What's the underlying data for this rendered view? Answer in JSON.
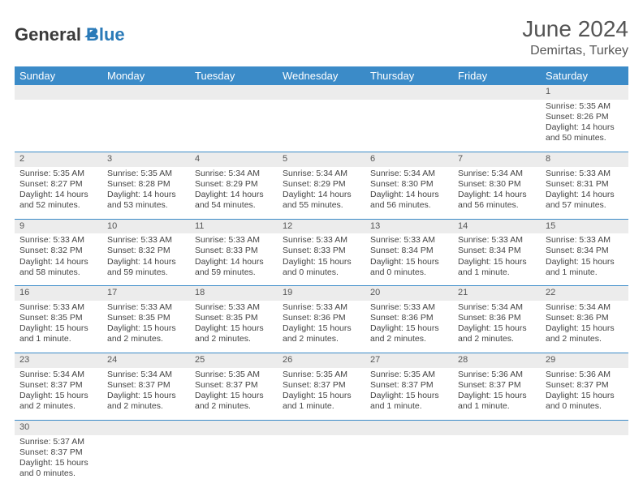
{
  "logo": {
    "text1": "General",
    "text2": "Blue"
  },
  "header": {
    "month": "June 2024",
    "location": "Demirtas, Turkey"
  },
  "weekdays": [
    "Sunday",
    "Monday",
    "Tuesday",
    "Wednesday",
    "Thursday",
    "Friday",
    "Saturday"
  ],
  "colors": {
    "headerBg": "#3b8bc8",
    "rowBg": "#ececec"
  },
  "weeks": [
    [
      null,
      null,
      null,
      null,
      null,
      null,
      {
        "n": "1",
        "sr": "5:35 AM",
        "ss": "8:26 PM",
        "dl": "14 hours and 50 minutes."
      }
    ],
    [
      {
        "n": "2",
        "sr": "5:35 AM",
        "ss": "8:27 PM",
        "dl": "14 hours and 52 minutes."
      },
      {
        "n": "3",
        "sr": "5:35 AM",
        "ss": "8:28 PM",
        "dl": "14 hours and 53 minutes."
      },
      {
        "n": "4",
        "sr": "5:34 AM",
        "ss": "8:29 PM",
        "dl": "14 hours and 54 minutes."
      },
      {
        "n": "5",
        "sr": "5:34 AM",
        "ss": "8:29 PM",
        "dl": "14 hours and 55 minutes."
      },
      {
        "n": "6",
        "sr": "5:34 AM",
        "ss": "8:30 PM",
        "dl": "14 hours and 56 minutes."
      },
      {
        "n": "7",
        "sr": "5:34 AM",
        "ss": "8:30 PM",
        "dl": "14 hours and 56 minutes."
      },
      {
        "n": "8",
        "sr": "5:33 AM",
        "ss": "8:31 PM",
        "dl": "14 hours and 57 minutes."
      }
    ],
    [
      {
        "n": "9",
        "sr": "5:33 AM",
        "ss": "8:32 PM",
        "dl": "14 hours and 58 minutes."
      },
      {
        "n": "10",
        "sr": "5:33 AM",
        "ss": "8:32 PM",
        "dl": "14 hours and 59 minutes."
      },
      {
        "n": "11",
        "sr": "5:33 AM",
        "ss": "8:33 PM",
        "dl": "14 hours and 59 minutes."
      },
      {
        "n": "12",
        "sr": "5:33 AM",
        "ss": "8:33 PM",
        "dl": "15 hours and 0 minutes."
      },
      {
        "n": "13",
        "sr": "5:33 AM",
        "ss": "8:34 PM",
        "dl": "15 hours and 0 minutes."
      },
      {
        "n": "14",
        "sr": "5:33 AM",
        "ss": "8:34 PM",
        "dl": "15 hours and 1 minute."
      },
      {
        "n": "15",
        "sr": "5:33 AM",
        "ss": "8:34 PM",
        "dl": "15 hours and 1 minute."
      }
    ],
    [
      {
        "n": "16",
        "sr": "5:33 AM",
        "ss": "8:35 PM",
        "dl": "15 hours and 1 minute."
      },
      {
        "n": "17",
        "sr": "5:33 AM",
        "ss": "8:35 PM",
        "dl": "15 hours and 2 minutes."
      },
      {
        "n": "18",
        "sr": "5:33 AM",
        "ss": "8:35 PM",
        "dl": "15 hours and 2 minutes."
      },
      {
        "n": "19",
        "sr": "5:33 AM",
        "ss": "8:36 PM",
        "dl": "15 hours and 2 minutes."
      },
      {
        "n": "20",
        "sr": "5:33 AM",
        "ss": "8:36 PM",
        "dl": "15 hours and 2 minutes."
      },
      {
        "n": "21",
        "sr": "5:34 AM",
        "ss": "8:36 PM",
        "dl": "15 hours and 2 minutes."
      },
      {
        "n": "22",
        "sr": "5:34 AM",
        "ss": "8:36 PM",
        "dl": "15 hours and 2 minutes."
      }
    ],
    [
      {
        "n": "23",
        "sr": "5:34 AM",
        "ss": "8:37 PM",
        "dl": "15 hours and 2 minutes."
      },
      {
        "n": "24",
        "sr": "5:34 AM",
        "ss": "8:37 PM",
        "dl": "15 hours and 2 minutes."
      },
      {
        "n": "25",
        "sr": "5:35 AM",
        "ss": "8:37 PM",
        "dl": "15 hours and 2 minutes."
      },
      {
        "n": "26",
        "sr": "5:35 AM",
        "ss": "8:37 PM",
        "dl": "15 hours and 1 minute."
      },
      {
        "n": "27",
        "sr": "5:35 AM",
        "ss": "8:37 PM",
        "dl": "15 hours and 1 minute."
      },
      {
        "n": "28",
        "sr": "5:36 AM",
        "ss": "8:37 PM",
        "dl": "15 hours and 1 minute."
      },
      {
        "n": "29",
        "sr": "5:36 AM",
        "ss": "8:37 PM",
        "dl": "15 hours and 0 minutes."
      }
    ],
    [
      {
        "n": "30",
        "sr": "5:37 AM",
        "ss": "8:37 PM",
        "dl": "15 hours and 0 minutes."
      },
      null,
      null,
      null,
      null,
      null,
      null
    ]
  ],
  "labels": {
    "sunrise": "Sunrise: ",
    "sunset": "Sunset: ",
    "daylight": "Daylight: "
  }
}
